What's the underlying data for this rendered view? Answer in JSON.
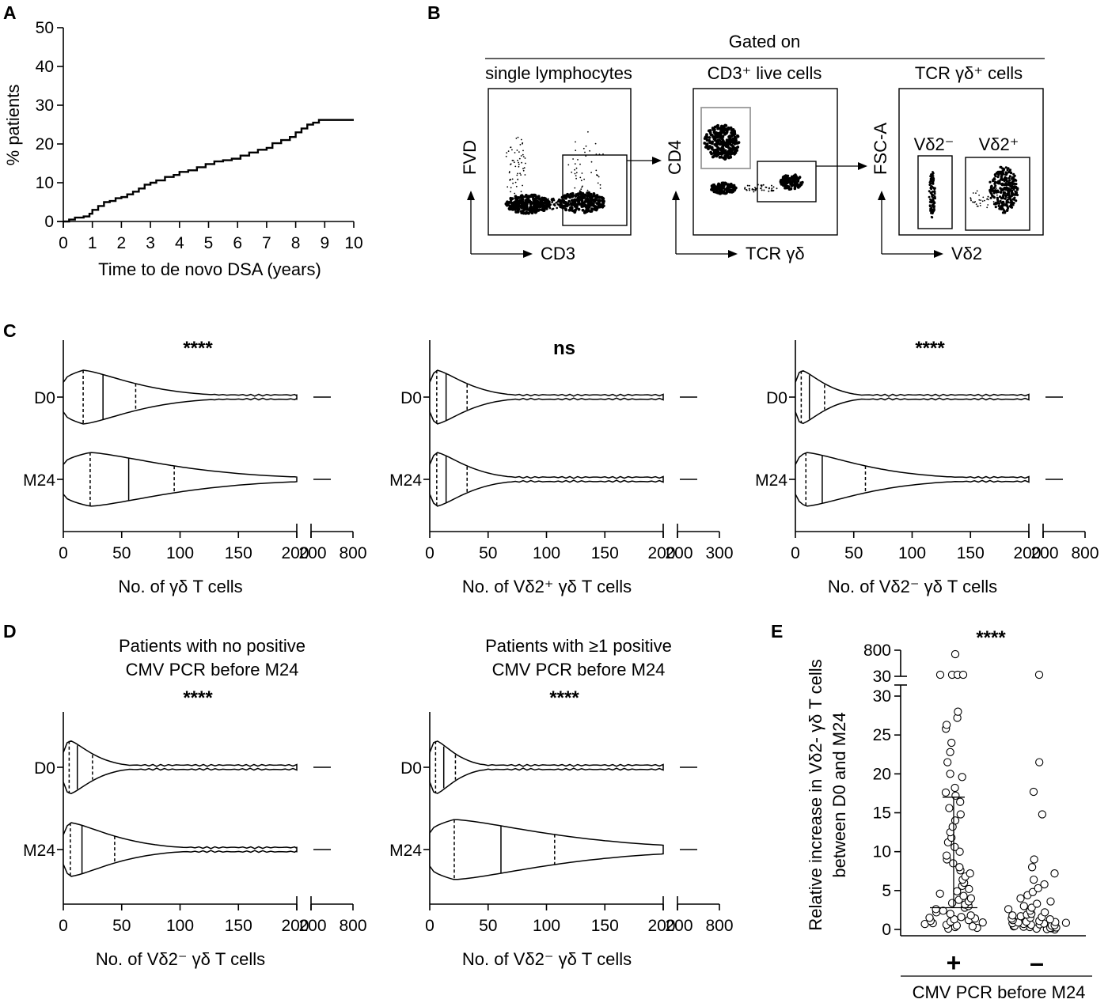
{
  "panels": {
    "a": "A",
    "b": "B",
    "c": "C",
    "d": "D",
    "e": "E"
  },
  "chart_data": [
    {
      "id": "A",
      "type": "line",
      "step": true,
      "xlabel": "Time to de novo DSA (years)",
      "ylabel": "% patients",
      "xlim": [
        0,
        10
      ],
      "ylim": [
        0,
        50
      ],
      "xticks": [
        0,
        1,
        2,
        3,
        4,
        5,
        6,
        7,
        8,
        9,
        10
      ],
      "yticks": [
        0,
        10,
        20,
        30,
        40,
        50
      ],
      "x": [
        0,
        0.2,
        0.4,
        0.7,
        0.9,
        1.0,
        1.2,
        1.4,
        1.6,
        1.8,
        2.0,
        2.2,
        2.4,
        2.6,
        2.8,
        3.0,
        3.2,
        3.5,
        3.8,
        4.0,
        4.3,
        4.6,
        4.9,
        5.2,
        5.5,
        5.8,
        6.1,
        6.4,
        6.7,
        7.0,
        7.2,
        7.5,
        7.8,
        8.0,
        8.2,
        8.4,
        8.6,
        8.8,
        10.0
      ],
      "y": [
        0,
        0.5,
        1,
        1.3,
        2,
        3,
        4,
        5,
        5.3,
        6,
        6.3,
        7,
        7.7,
        8.5,
        9.5,
        10,
        10.6,
        11.5,
        12,
        12.8,
        13.2,
        14,
        14.8,
        15.5,
        15.8,
        16.2,
        17,
        17.8,
        18.5,
        19,
        20.2,
        21,
        21.8,
        23,
        24,
        25,
        25.5,
        26.2,
        26.2
      ]
    },
    {
      "id": "B",
      "type": "other",
      "title": "Gated on",
      "plots": [
        {
          "gate": "single lymphocytes",
          "xlabel": "CD3",
          "ylabel": "FVD"
        },
        {
          "gate": "CD3⁺ live cells",
          "xlabel": "TCR γδ",
          "ylabel": "CD4"
        },
        {
          "gate": "TCR γδ⁺ cells",
          "xlabel": "Vδ2",
          "ylabel": "FSC-A",
          "gate_labels": [
            "Vδ2⁻",
            "Vδ2⁺"
          ]
        }
      ]
    },
    {
      "id": "C1",
      "type": "violin",
      "orientation": "horizontal",
      "categories": [
        "D0",
        "M24"
      ],
      "xlabel": "No. of γδ T cells",
      "xticks": [
        "0",
        "50",
        "100",
        "150",
        "200",
        "200",
        "800"
      ],
      "significance": "****",
      "quartiles": {
        "D0": [
          17,
          34,
          62
        ],
        "M24": [
          23,
          56,
          95
        ]
      },
      "max": {
        "D0": 205,
        "M24": 205
      }
    },
    {
      "id": "C2",
      "type": "violin",
      "orientation": "horizontal",
      "categories": [
        "D0",
        "M24"
      ],
      "xlabel": "No. of Vδ2⁺ γδ T cells",
      "xticks": [
        "0",
        "50",
        "100",
        "150",
        "200",
        "200",
        "300"
      ],
      "significance": "ns",
      "quartiles": {
        "D0": [
          6,
          14,
          32
        ],
        "M24": [
          6,
          14,
          32
        ]
      },
      "max": {
        "D0": 200,
        "M24": 200
      }
    },
    {
      "id": "C3",
      "type": "violin",
      "orientation": "horizontal",
      "categories": [
        "D0",
        "M24"
      ],
      "xlabel": "No. of Vδ2⁻ γδ T cells",
      "xticks": [
        "0",
        "50",
        "100",
        "150",
        "200",
        "200",
        "800"
      ],
      "significance": "****",
      "quartiles": {
        "D0": [
          5,
          12,
          25
        ],
        "M24": [
          9,
          23,
          60
        ]
      },
      "max": {
        "D0": 200,
        "M24": 200
      }
    },
    {
      "id": "D1",
      "type": "violin",
      "orientation": "horizontal",
      "title": [
        "Patients with no positive",
        "CMV PCR before M24"
      ],
      "categories": [
        "D0",
        "M24"
      ],
      "xlabel": "No. of Vδ2⁻ γδ T cells",
      "xticks": [
        "0",
        "50",
        "100",
        "150",
        "200",
        "200",
        "800"
      ],
      "significance": "****",
      "quartiles": {
        "D0": [
          5,
          12,
          25
        ],
        "M24": [
          6,
          16,
          44
        ]
      },
      "max": {
        "D0": 200,
        "M24": 205
      }
    },
    {
      "id": "D2",
      "type": "violin",
      "orientation": "horizontal",
      "title": [
        "Patients with ≥1 positive",
        "CMV PCR before M24"
      ],
      "categories": [
        "D0",
        "M24"
      ],
      "xlabel": "No. of Vδ2⁻ γδ T cells",
      "xticks": [
        "0",
        "50",
        "100",
        "150",
        "200",
        "200",
        "800"
      ],
      "significance": "****",
      "quartiles": {
        "D0": [
          5,
          12,
          22
        ],
        "M24": [
          21,
          61,
          107
        ]
      },
      "max": {
        "D0": 200,
        "M24": 205
      }
    },
    {
      "id": "E",
      "type": "scatter",
      "ylabel": [
        "Relative increase in Vδ2- γδ T cells",
        "between D0 and M24"
      ],
      "xlabel": "CMV PCR before M24",
      "categories": [
        "+",
        "–"
      ],
      "yticks": [
        "0",
        "5",
        "10",
        "15",
        "20",
        "25",
        "30"
      ],
      "yticks_break": [
        "30",
        "800"
      ],
      "significance": "****",
      "error_bars": {
        "+": {
          "median": 2.8,
          "upper": 17.0
        }
      },
      "points": {
        "+": [
          0.1,
          0.2,
          0.3,
          0.4,
          0.5,
          0.6,
          0.7,
          0.8,
          0.9,
          1.0,
          1.1,
          1.2,
          1.3,
          1.4,
          1.5,
          1.6,
          1.8,
          2.0,
          2.2,
          2.4,
          2.6,
          2.8,
          3.0,
          3.2,
          3.4,
          3.6,
          3.8,
          4.0,
          4.3,
          4.6,
          4.9,
          5.2,
          5.6,
          6.0,
          6.4,
          6.8,
          7.2,
          7.6,
          8.0,
          8.5,
          9.0,
          9.5,
          10.0,
          10.6,
          11.2,
          11.8,
          12.5,
          13.2,
          14.0,
          14.8,
          15.6,
          16.4,
          17.2,
          17.6,
          18.2,
          19.6,
          20.0,
          21.5,
          22.8,
          24.0,
          25.8,
          26.3,
          27.2,
          28.0,
          32,
          33,
          34,
          36
        ],
        "–": [
          0.0,
          0.05,
          0.1,
          0.15,
          0.2,
          0.25,
          0.3,
          0.35,
          0.4,
          0.45,
          0.5,
          0.55,
          0.6,
          0.65,
          0.7,
          0.75,
          0.8,
          0.85,
          0.9,
          0.95,
          1.0,
          1.1,
          1.2,
          1.3,
          1.4,
          1.5,
          1.6,
          1.7,
          1.8,
          1.9,
          2.0,
          2.2,
          2.4,
          2.6,
          2.8,
          3.0,
          3.3,
          3.6,
          4.0,
          4.4,
          4.8,
          5.3,
          5.8,
          6.4,
          7.2,
          8.0,
          9.0,
          14.8,
          17.7,
          21.5,
          31
        ]
      }
    }
  ]
}
